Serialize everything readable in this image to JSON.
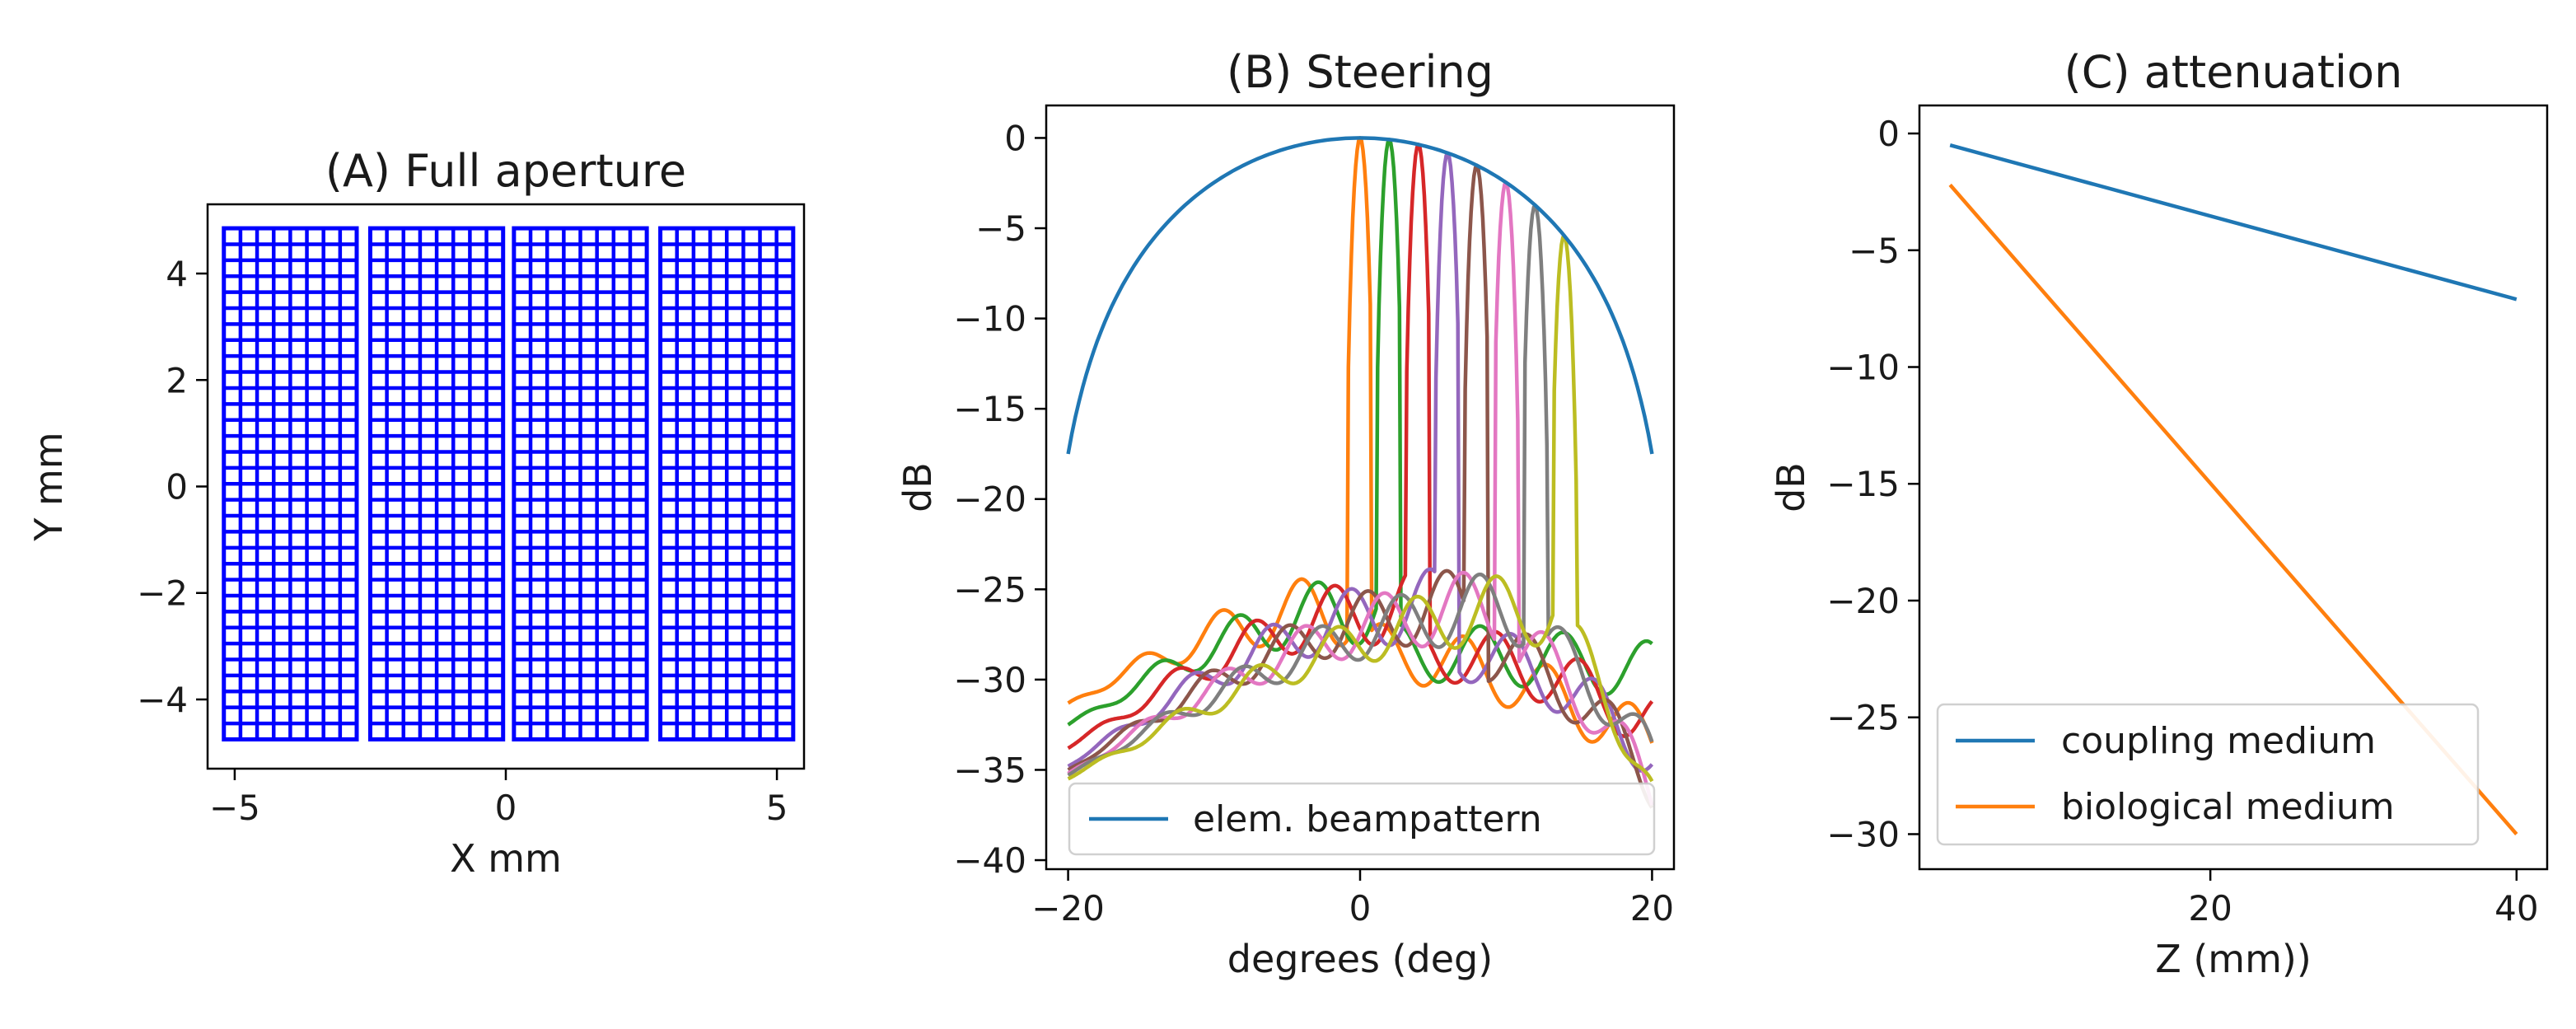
{
  "chart_data": [
    {
      "type": "scatter",
      "title": "(A) Full aperture",
      "xlabel": "X mm",
      "ylabel": "Y mm",
      "xlim": [
        -5.5,
        5.5
      ],
      "ylim": [
        -5.3,
        5.3
      ],
      "xticks": [
        -5,
        0,
        5
      ],
      "yticks": [
        -4,
        -2,
        0,
        2,
        4
      ],
      "grid": false,
      "marker_color": "#0000ff",
      "element_grid": {
        "tiles": [
          {
            "x_range": [
              -5.2,
              -2.75
            ]
          },
          {
            "x_range": [
              -2.5,
              -0.05
            ]
          },
          {
            "x_range": [
              0.15,
              2.6
            ]
          },
          {
            "x_range": [
              2.85,
              5.3
            ]
          }
        ],
        "y_range": [
          -4.75,
          4.85
        ],
        "columns_per_tile": 8,
        "rows": 32
      }
    },
    {
      "type": "line",
      "title": "(B) Steering",
      "xlabel": "degrees (deg)",
      "ylabel": "dB",
      "xlim": [
        -21.5,
        21.5
      ],
      "ylim": [
        -40.5,
        1.8
      ],
      "xticks": [
        -20,
        0,
        20
      ],
      "yticks": [
        0,
        -5,
        -10,
        -15,
        -20,
        -25,
        -30,
        -35,
        -40
      ],
      "grid": false,
      "legend": {
        "location": "lower center",
        "entries": [
          "elem. beampattern"
        ]
      },
      "envelope": {
        "name": "elem. beampattern",
        "color": "#1f77b4",
        "x_range": [
          -20,
          20
        ],
        "peak": 0,
        "edge_level": -17.5
      },
      "steered_beams": [
        {
          "color": "#ff7f0e",
          "steer": 0,
          "shoulder": -20,
          "floor": -28.5,
          "left_edge": -31.3,
          "right_edge": -33.5
        },
        {
          "color": "#2ca02c",
          "steer": 2,
          "shoulder": -23,
          "floor": -28.5,
          "left_edge": -32.5,
          "right_edge": -29.5
        },
        {
          "color": "#d62728",
          "steer": 4,
          "shoulder": -25,
          "floor": -28.5,
          "left_edge": -33.8,
          "right_edge": -32.3
        },
        {
          "color": "#9467bd",
          "steer": 6,
          "shoulder": -26,
          "floor": -28.5,
          "left_edge": -34.8,
          "right_edge": -34.0
        },
        {
          "color": "#8c564b",
          "steer": 8,
          "shoulder": -27,
          "floor": -28.5,
          "left_edge": -35.0,
          "right_edge": -35.5
        },
        {
          "color": "#e377c2",
          "steer": 10,
          "shoulder": -27,
          "floor": -28.5,
          "left_edge": -35.2,
          "right_edge": -36.5
        },
        {
          "color": "#7f7f7f",
          "steer": 12,
          "shoulder": -27,
          "floor": -28.5,
          "left_edge": -35.3,
          "right_edge": -34.7
        },
        {
          "color": "#bcbd22",
          "steer": 14,
          "shoulder": -27,
          "floor": -28.5,
          "left_edge": -35.5,
          "right_edge": -37.0
        }
      ]
    },
    {
      "type": "line",
      "title": "(C) attenuation",
      "xlabel": "Z (mm))",
      "ylabel": "dB",
      "xlim": [
        1,
        42
      ],
      "ylim": [
        -31.5,
        1.2
      ],
      "xticks": [
        20,
        40
      ],
      "yticks": [
        0,
        -5,
        -10,
        -15,
        -20,
        -25,
        -30
      ],
      "grid": false,
      "legend": {
        "location": "lower left"
      },
      "series": [
        {
          "name": "coupling medium",
          "color": "#1f77b4",
          "x": [
            3,
            40
          ],
          "y": [
            -0.5,
            -7.1
          ]
        },
        {
          "name": "biological medium",
          "color": "#ff7f0e",
          "x": [
            3,
            40
          ],
          "y": [
            -2.2,
            -30.0
          ]
        }
      ]
    }
  ]
}
